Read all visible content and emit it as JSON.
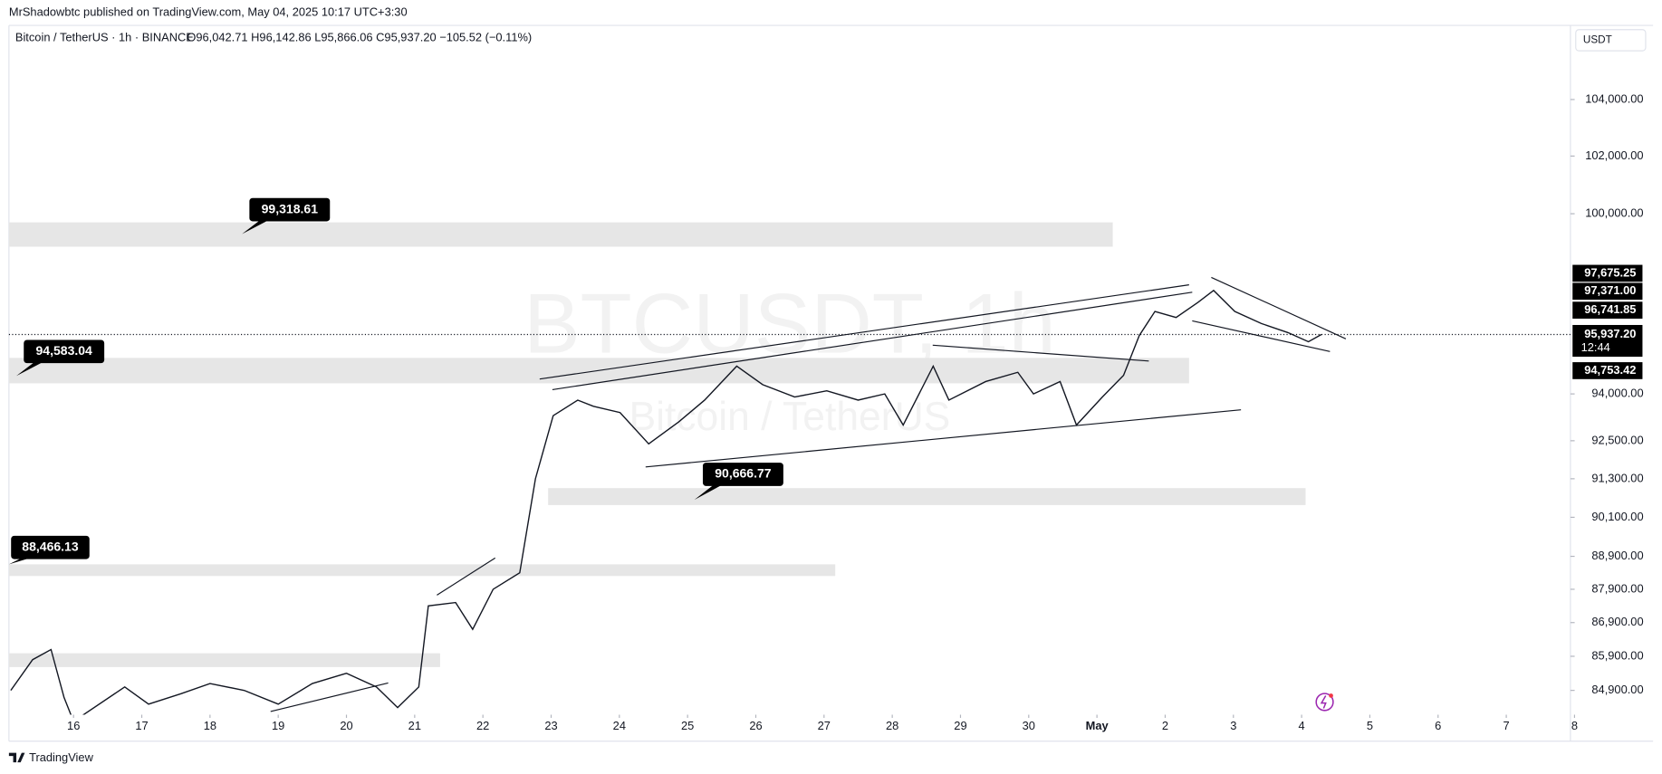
{
  "chart_data": {
    "type": "line",
    "header_note": "MrShadowbtc published on TradingView.com, May 04, 2025 10:17 UTC+3:30",
    "title": "Bitcoin / TetherUS · 1h · BINANCE",
    "subtitle": "O96,042.71 H96,142.86 L95,866.06 C95,937.20 −105.52 (−0.11%)",
    "currency": "USDT",
    "watermark": "BTCUSDT, 1h",
    "watermark_sub": "Bitcoin / TetherUS",
    "footer": "TradingView",
    "log": true,
    "grid": false,
    "xlim": [
      -0.947,
      21.94
    ],
    "ylim": [
      84194,
      106642
    ],
    "xticks": [
      {
        "value": 0,
        "label": "16"
      },
      {
        "value": 1,
        "label": "17"
      },
      {
        "value": 2,
        "label": "18"
      },
      {
        "value": 3,
        "label": "19"
      },
      {
        "value": 4,
        "label": "20"
      },
      {
        "value": 5,
        "label": "21"
      },
      {
        "value": 6,
        "label": "22"
      },
      {
        "value": 7,
        "label": "23"
      },
      {
        "value": 8,
        "label": "24"
      },
      {
        "value": 9,
        "label": "25"
      },
      {
        "value": 10,
        "label": "26"
      },
      {
        "value": 11,
        "label": "27"
      },
      {
        "value": 12,
        "label": "28"
      },
      {
        "value": 13,
        "label": "29"
      },
      {
        "value": 14,
        "label": "30"
      },
      {
        "value": 15,
        "label": "May"
      },
      {
        "value": 16,
        "label": "2"
      },
      {
        "value": 17,
        "label": "3"
      },
      {
        "value": 18,
        "label": "4"
      },
      {
        "value": 19,
        "label": "5"
      },
      {
        "value": 20,
        "label": "6"
      },
      {
        "value": 21,
        "label": "7"
      },
      {
        "value": 22,
        "label": "8"
      }
    ],
    "yticks": [
      {
        "value": 84900,
        "label": "84,900.00"
      },
      {
        "value": 85900,
        "label": "85,900.00"
      },
      {
        "value": 86900,
        "label": "86,900.00"
      },
      {
        "value": 87900,
        "label": "87,900.00"
      },
      {
        "value": 88900,
        "label": "88,900.00"
      },
      {
        "value": 90100,
        "label": "90,100.00"
      },
      {
        "value": 91300,
        "label": "91,300.00"
      },
      {
        "value": 92500,
        "label": "92,500.00"
      },
      {
        "value": 94000,
        "label": "94,000.00"
      },
      {
        "value": 100000,
        "label": "100,000.00"
      },
      {
        "value": 102000,
        "label": "102,000.00"
      },
      {
        "value": 104000,
        "label": "104,000.00"
      }
    ],
    "series": [
      {
        "name": "BTCUSDT",
        "color": "#131722",
        "x": [
          -0.92,
          -0.6,
          -0.33,
          -0.14,
          0.0,
          0.75,
          1.1,
          1.57,
          2.0,
          2.5,
          3.0,
          3.5,
          4.0,
          4.44,
          4.75,
          5.06,
          5.2,
          5.6,
          5.85,
          6.15,
          6.54,
          6.77,
          7.03,
          7.39,
          7.62,
          8.01,
          8.43,
          8.87,
          9.25,
          9.72,
          10.1,
          10.57,
          11.04,
          11.5,
          11.89,
          12.16,
          12.6,
          12.83,
          13.37,
          13.84,
          14.07,
          14.46,
          14.7,
          15.08,
          15.39,
          15.62,
          15.85,
          16.16,
          16.48,
          16.71,
          17.02,
          17.41,
          17.8,
          18.1,
          18.29
        ],
        "values": [
          84900,
          85800,
          86100,
          84700,
          84000,
          85000,
          84500,
          84800,
          85100,
          84900,
          84500,
          85100,
          85400,
          85000,
          84400,
          85000,
          87400,
          87500,
          86700,
          87900,
          88400,
          91300,
          93300,
          93800,
          93600,
          93400,
          92400,
          93100,
          93800,
          94900,
          94300,
          93900,
          94100,
          93800,
          94000,
          93000,
          94900,
          93800,
          94400,
          94700,
          94000,
          94400,
          93000,
          93900,
          94600,
          95900,
          96700,
          96500,
          97000,
          97400,
          96700,
          96300,
          96000,
          95700,
          95937.2
        ]
      }
    ],
    "current_price": {
      "value": 95937.2,
      "label": "95,937.20"
    },
    "countdown": "12:44",
    "price_labels": [
      {
        "value": 97675.25,
        "label": "97,675.25"
      },
      {
        "value": 97371,
        "label": "97,371.00"
      },
      {
        "value": 96741.85,
        "label": "96,741.85"
      },
      {
        "value": 94753.42,
        "label": "94,753.42"
      }
    ],
    "callouts": [
      "99,318.61",
      "94,583.04",
      "90,666.77",
      "88,466.13"
    ]
  }
}
